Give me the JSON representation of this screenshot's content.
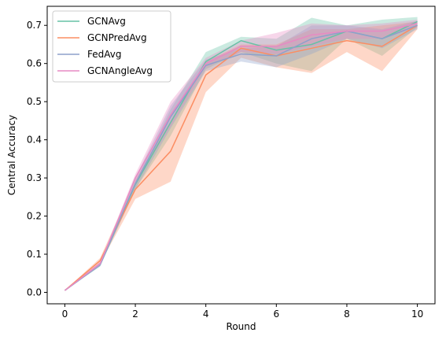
{
  "chart_data": {
    "type": "line",
    "xlabel": "Round",
    "ylabel": "Central Accuracy",
    "xlim": [
      -0.5,
      10.5
    ],
    "ylim": [
      -0.03,
      0.75
    ],
    "xticks": [
      0,
      2,
      4,
      6,
      8,
      10
    ],
    "yticks": [
      0.0,
      0.1,
      0.2,
      0.3,
      0.4,
      0.5,
      0.6,
      0.7
    ],
    "ytick_labels": [
      "0.0",
      "0.1",
      "0.2",
      "0.3",
      "0.4",
      "0.5",
      "0.6",
      "0.7"
    ],
    "grid": false,
    "legend_position": "top-left",
    "x": [
      0,
      1,
      2,
      3,
      4,
      5,
      6,
      7,
      8,
      9,
      10
    ],
    "series": [
      {
        "name": "GCNAvg",
        "color": "#66c2a5",
        "values": [
          0.005,
          0.072,
          0.283,
          0.445,
          0.605,
          0.66,
          0.635,
          0.65,
          0.685,
          0.665,
          0.71
        ],
        "lower": [
          0.005,
          0.068,
          0.27,
          0.41,
          0.585,
          0.63,
          0.6,
          0.58,
          0.665,
          0.62,
          0.695
        ],
        "upper": [
          0.005,
          0.078,
          0.29,
          0.48,
          0.63,
          0.67,
          0.665,
          0.72,
          0.7,
          0.715,
          0.722
        ]
      },
      {
        "name": "GCNPredAvg",
        "color": "#fc8d62",
        "values": [
          0.005,
          0.083,
          0.27,
          0.37,
          0.57,
          0.64,
          0.62,
          0.64,
          0.66,
          0.645,
          0.7
        ],
        "lower": [
          0.005,
          0.075,
          0.245,
          0.29,
          0.525,
          0.615,
          0.59,
          0.575,
          0.63,
          0.58,
          0.69
        ],
        "upper": [
          0.005,
          0.09,
          0.295,
          0.45,
          0.605,
          0.65,
          0.65,
          0.69,
          0.69,
          0.7,
          0.71
        ]
      },
      {
        "name": "FedAvg",
        "color": "#8da0cb",
        "values": [
          0.005,
          0.072,
          0.285,
          0.46,
          0.595,
          0.625,
          0.62,
          0.665,
          0.685,
          0.665,
          0.7
        ],
        "lower": [
          0.005,
          0.068,
          0.27,
          0.43,
          0.58,
          0.605,
          0.59,
          0.625,
          0.665,
          0.64,
          0.69
        ],
        "upper": [
          0.005,
          0.078,
          0.3,
          0.49,
          0.61,
          0.64,
          0.645,
          0.7,
          0.7,
          0.69,
          0.712
        ]
      },
      {
        "name": "GCNAngleAvg",
        "color": "#e78ac3",
        "values": [
          0.005,
          0.075,
          0.3,
          0.465,
          0.6,
          0.645,
          0.645,
          0.675,
          0.685,
          0.685,
          0.705
        ],
        "lower": [
          0.005,
          0.07,
          0.285,
          0.435,
          0.59,
          0.63,
          0.625,
          0.645,
          0.665,
          0.665,
          0.695
        ],
        "upper": [
          0.005,
          0.08,
          0.31,
          0.5,
          0.615,
          0.66,
          0.68,
          0.705,
          0.7,
          0.705,
          0.715
        ]
      }
    ]
  }
}
